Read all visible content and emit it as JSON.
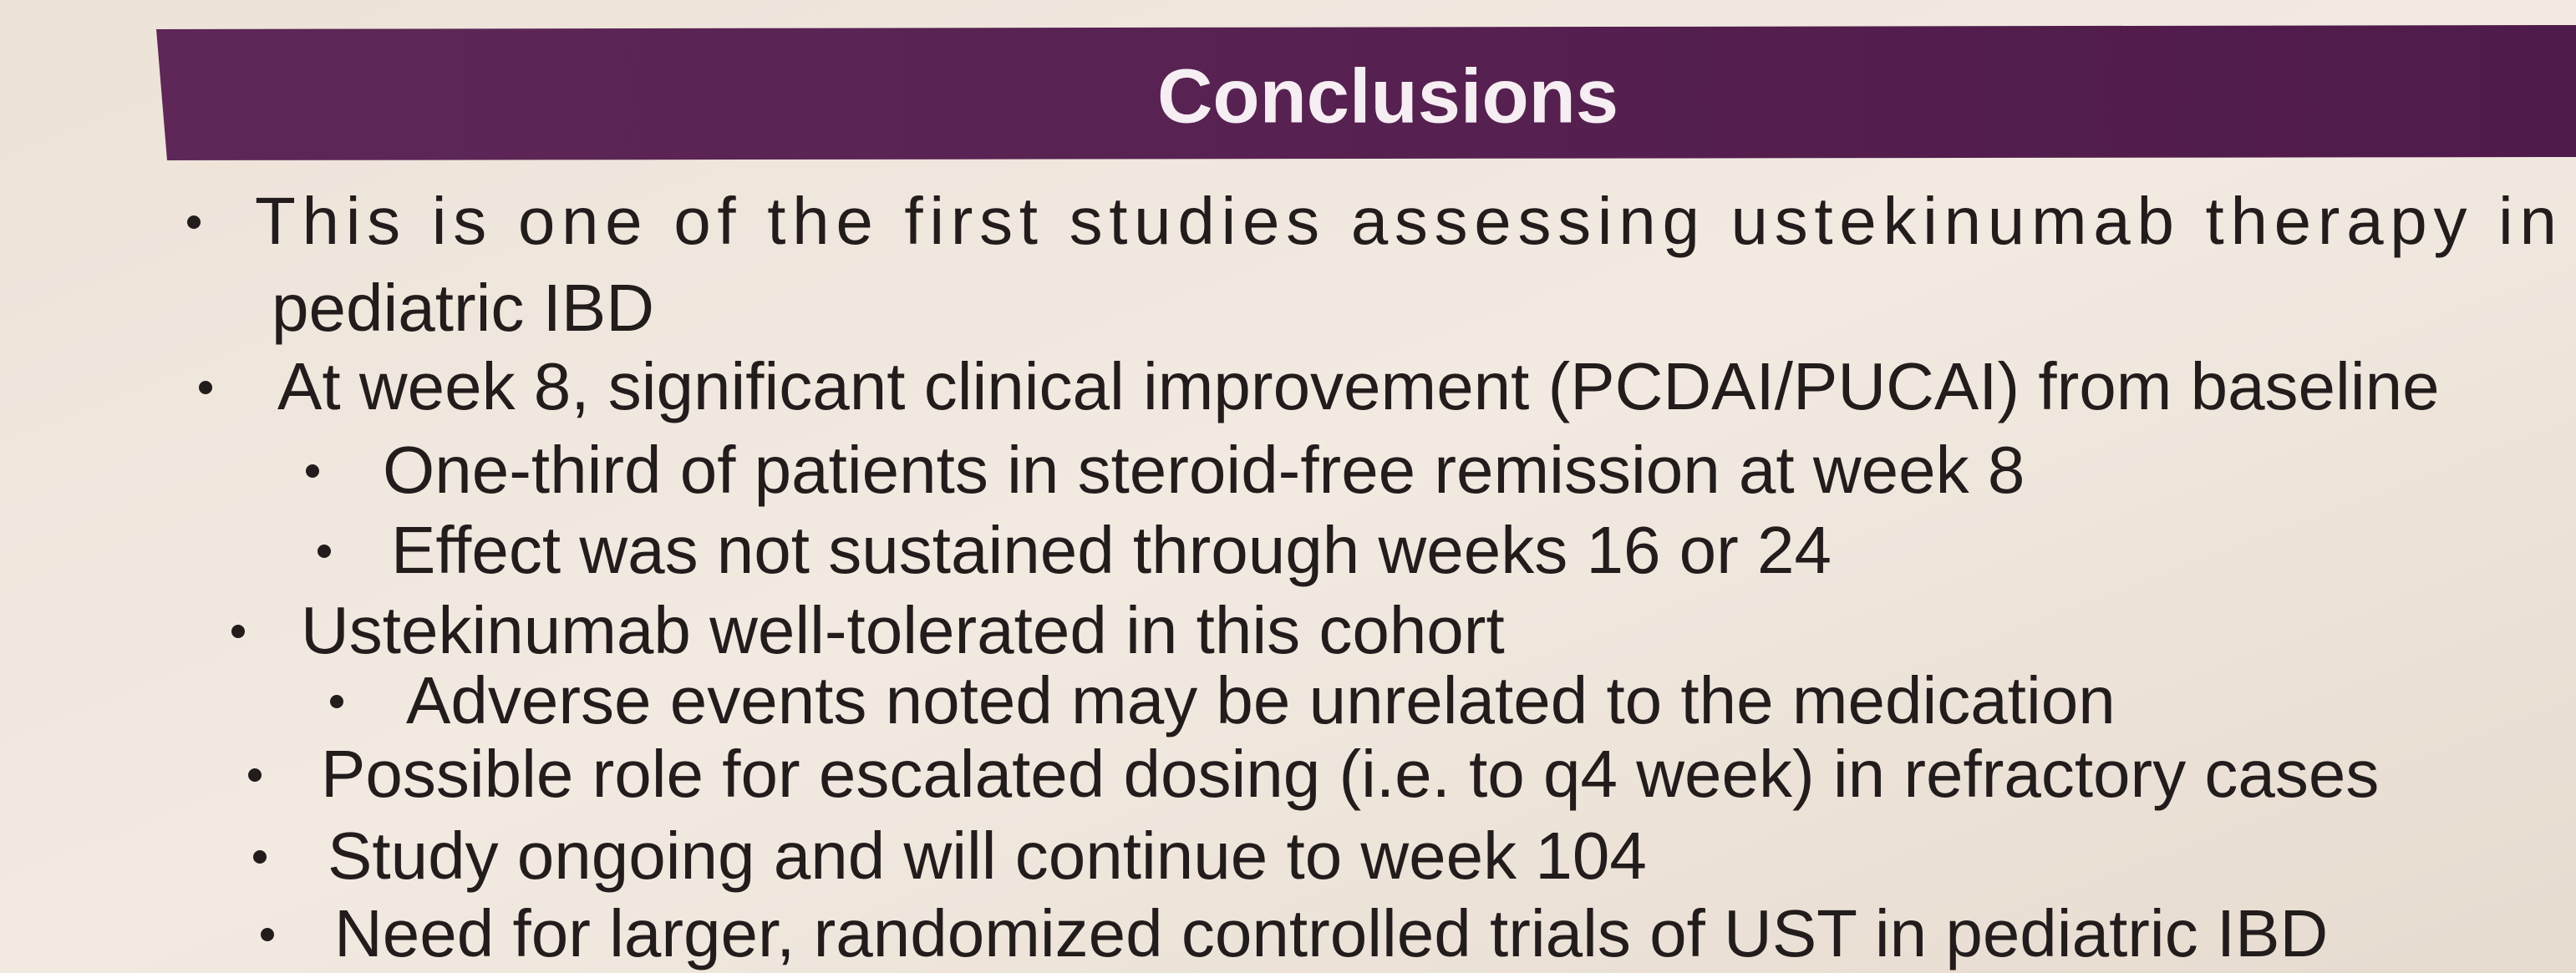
{
  "header": {
    "title": "Conclusions"
  },
  "lines": [
    "This is one of the first studies assessing ustekinumab therapy in",
    "pediatric IBD",
    "At week 8, significant clinical improvement (PCDAI/PUCAI) from baseline",
    "One-third of patients in steroid-free remission at week 8",
    "Effect was not sustained through weeks 16 or 24",
    "Ustekinumab well-tolerated in this cohort",
    "Adverse events noted may be unrelated to the medication",
    "Possible role for escalated dosing (i.e. to q4 week) in refractory cases",
    "Study ongoing and will continue to week 104",
    "Need for larger, randomized controlled trials of UST in pediatric IBD"
  ]
}
